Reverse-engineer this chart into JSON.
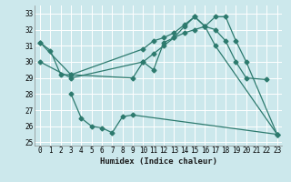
{
  "xlabel": "Humidex (Indice chaleur)",
  "bg_color": "#cce8ec",
  "line_color": "#2d7a6e",
  "grid_color": "#ffffff",
  "xlim": [
    -0.5,
    23.5
  ],
  "ylim": [
    24.8,
    33.5
  ],
  "yticks": [
    25,
    26,
    27,
    28,
    29,
    30,
    31,
    32,
    33
  ],
  "xticks": [
    0,
    1,
    2,
    3,
    4,
    5,
    6,
    7,
    8,
    9,
    10,
    11,
    12,
    13,
    14,
    15,
    16,
    17,
    18,
    19,
    20,
    21,
    22,
    23
  ],
  "line1_x": [
    0,
    1,
    2,
    3,
    9,
    10,
    11,
    12,
    13,
    14,
    15,
    16,
    17,
    18,
    19,
    20,
    22
  ],
  "line1_y": [
    31.2,
    30.7,
    29.2,
    29.2,
    29.0,
    30.0,
    29.5,
    31.2,
    31.5,
    32.2,
    32.8,
    32.2,
    32.0,
    31.3,
    30.0,
    29.0,
    28.9
  ],
  "line2_x": [
    0,
    3,
    10,
    11,
    12,
    13,
    14,
    15,
    16,
    17,
    18,
    19,
    20,
    23
  ],
  "line2_y": [
    31.2,
    29.2,
    30.8,
    31.3,
    31.5,
    31.8,
    32.3,
    32.8,
    32.2,
    32.8,
    32.8,
    31.3,
    30.0,
    25.5
  ],
  "line3_x": [
    3,
    4,
    5,
    6,
    7,
    8,
    9,
    23
  ],
  "line3_y": [
    28.0,
    26.5,
    26.0,
    25.9,
    25.6,
    26.6,
    26.7,
    25.5
  ],
  "line4_x": [
    0,
    3,
    10,
    11,
    12,
    13,
    14,
    15,
    16,
    17,
    23
  ],
  "line4_y": [
    30.0,
    29.0,
    30.0,
    30.5,
    31.0,
    31.5,
    31.8,
    32.0,
    32.2,
    31.0,
    25.5
  ]
}
